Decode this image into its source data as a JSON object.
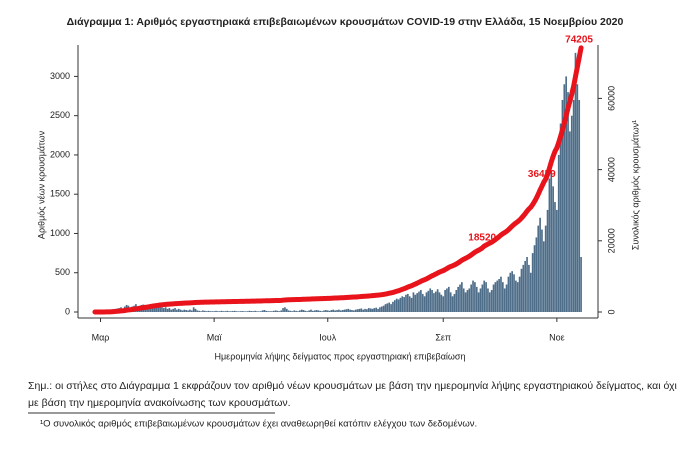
{
  "chart_data": {
    "type": "bar",
    "title": "Διάγραμμα 1: Αριθμός εργαστηριακά επιβεβαιωμένων κρουσμάτων COVID-19 στην Ελλάδα, 15 Νοεμβρίου 2020",
    "xlabel": "Ημερομηνία λήψης δείγματος προς εργαστηριακή επιβεβαίωση",
    "ylabel": "Αριθμός νέων κρουσμάτων",
    "y2label": "Συνολικός αριθμός κρουσμάτων¹",
    "ylim": [
      0,
      3400
    ],
    "yticks": [
      0,
      500,
      1000,
      1500,
      2000,
      2500,
      3000
    ],
    "y2lim": [
      0,
      75000
    ],
    "y2ticks": [
      0,
      20000,
      40000,
      60000
    ],
    "categories": [
      null,
      null,
      null,
      "Μαρ",
      null,
      null,
      null,
      null,
      null,
      null,
      null,
      null,
      null,
      null,
      null,
      null,
      null,
      null,
      null,
      null,
      null,
      null,
      null,
      null,
      null,
      null,
      null,
      null,
      null,
      null,
      null,
      null,
      null,
      null,
      null,
      null,
      null,
      null,
      null,
      null,
      null,
      null,
      null,
      null,
      null,
      null,
      null,
      null,
      null,
      null,
      null,
      null,
      null,
      null,
      null,
      null,
      null,
      null,
      null,
      null,
      null,
      null,
      null,
      null,
      "Μαϊ",
      null,
      null,
      null,
      null,
      null,
      null,
      null,
      null,
      null,
      null,
      null,
      null,
      null,
      null,
      null,
      null,
      null,
      null,
      null,
      null,
      null,
      null,
      null,
      null,
      null,
      null,
      null,
      null,
      null,
      null,
      null,
      null,
      null,
      null,
      null,
      null,
      null,
      null,
      null,
      null,
      null,
      null,
      null,
      null,
      null,
      null,
      null,
      null,
      null,
      null,
      null,
      null,
      null,
      null,
      null,
      null,
      null,
      null,
      null,
      null,
      "Ιουλ",
      null,
      null,
      null,
      null,
      null,
      null,
      null,
      null,
      null,
      null,
      null,
      null,
      null,
      null,
      null,
      null,
      null,
      null,
      null,
      null,
      null,
      null,
      null,
      null,
      null,
      null,
      null,
      null,
      null,
      null,
      null,
      null,
      null,
      null,
      null,
      null,
      null,
      null,
      null,
      null,
      null,
      null,
      null,
      null,
      null,
      null,
      null,
      null,
      null,
      null,
      null,
      null,
      null,
      null,
      null,
      null,
      null,
      null,
      null,
      null,
      null,
      "Σεπ",
      null,
      null,
      null,
      null,
      null,
      null,
      null,
      null,
      null,
      null,
      null,
      null,
      null,
      null,
      null,
      null,
      null,
      null,
      null,
      null,
      null,
      null,
      null,
      null,
      null,
      null,
      null,
      null,
      null,
      null,
      null,
      null,
      null,
      null,
      null,
      null,
      null,
      null,
      null,
      null,
      null,
      null,
      null,
      null,
      null,
      null,
      null,
      null,
      null,
      null,
      null,
      null,
      null,
      null,
      null,
      null,
      null,
      null,
      null,
      null,
      "Νοε",
      null,
      null,
      null,
      null,
      null,
      null,
      null,
      null,
      null,
      null,
      null,
      null,
      null
    ],
    "series": [
      {
        "type": "bar",
        "color": "#4e6d89",
        "values": [
          1,
          1,
          2,
          2,
          3,
          5,
          8,
          10,
          20,
          30,
          35,
          40,
          45,
          50,
          60,
          40,
          70,
          90,
          80,
          50,
          70,
          80,
          100,
          70,
          80,
          90,
          95,
          80,
          70,
          90,
          100,
          90,
          80,
          70,
          70,
          80,
          60,
          50,
          60,
          40,
          50,
          30,
          40,
          50,
          30,
          40,
          30,
          20,
          30,
          25,
          20,
          30,
          20,
          60,
          40,
          20,
          15,
          10,
          20,
          15,
          10,
          15,
          10,
          10,
          10,
          15,
          10,
          10,
          15,
          10,
          10,
          15,
          10,
          10,
          12,
          15,
          10,
          8,
          10,
          12,
          10,
          8,
          10,
          15,
          12,
          10,
          15,
          10,
          8,
          10,
          20,
          25,
          15,
          10,
          10,
          10,
          15,
          20,
          15,
          10,
          20,
          50,
          60,
          40,
          20,
          15,
          10,
          20,
          15,
          10,
          20,
          30,
          25,
          15,
          10,
          20,
          30,
          15,
          20,
          25,
          20,
          15,
          10,
          20,
          25,
          20,
          15,
          25,
          30,
          20,
          25,
          30,
          20,
          25,
          30,
          35,
          40,
          30,
          25,
          20,
          30,
          35,
          40,
          45,
          30,
          40,
          35,
          50,
          45,
          40,
          50,
          55,
          40,
          60,
          70,
          80,
          100,
          110,
          120,
          100,
          130,
          150,
          170,
          160,
          180,
          200,
          190,
          220,
          230,
          200,
          180,
          250,
          220,
          240,
          260,
          280,
          230,
          200,
          250,
          270,
          300,
          280,
          240,
          260,
          290,
          250,
          220,
          200,
          280,
          300,
          320,
          250,
          200,
          230,
          280,
          320,
          350,
          380,
          300,
          250,
          280,
          300,
          350,
          400,
          380,
          320,
          250,
          300,
          350,
          400,
          380,
          300,
          250,
          280,
          350,
          380,
          400,
          420,
          450,
          380,
          300,
          350,
          450,
          500,
          520,
          480,
          400,
          380,
          450,
          550,
          600,
          650,
          700,
          600,
          500,
          750,
          850,
          950,
          1100,
          1200,
          1050,
          900,
          1100,
          1300,
          1700,
          1800,
          1600,
          1400,
          1300,
          2000,
          2400,
          2700,
          2900,
          3000,
          2800,
          2300,
          2500,
          2700,
          3300,
          2900,
          2700,
          700
        ]
      },
      {
        "type": "line",
        "axis": "y2",
        "color": "#e8131b",
        "values": [
          1,
          2,
          4,
          6,
          9,
          14,
          22,
          32,
          52,
          82,
          117,
          157,
          202,
          252,
          312,
          352,
          422,
          512,
          592,
          642,
          712,
          792,
          892,
          962,
          1042,
          1132,
          1227,
          1307,
          1377,
          1467,
          1567,
          1657,
          1737,
          1807,
          1877,
          1957,
          2017,
          2067,
          2127,
          2167,
          2217,
          2247,
          2287,
          2337,
          2367,
          2407,
          2437,
          2457,
          2487,
          2512,
          2532,
          2562,
          2582,
          2642,
          2682,
          2702,
          2717,
          2727,
          2747,
          2762,
          2772,
          2787,
          2797,
          2807,
          2817,
          2832,
          2842,
          2852,
          2867,
          2877,
          2887,
          2902,
          2912,
          2922,
          2934,
          2949,
          2959,
          2967,
          2977,
          2989,
          2999,
          3007,
          3017,
          3032,
          3044,
          3054,
          3069,
          3079,
          3087,
          3097,
          3117,
          3142,
          3157,
          3167,
          3177,
          3187,
          3202,
          3222,
          3237,
          3247,
          3267,
          3317,
          3377,
          3417,
          3437,
          3452,
          3462,
          3482,
          3497,
          3507,
          3527,
          3557,
          3582,
          3597,
          3607,
          3627,
          3657,
          3672,
          3692,
          3717,
          3737,
          3752,
          3762,
          3782,
          3807,
          3827,
          3842,
          3867,
          3897,
          3917,
          3942,
          3972,
          3992,
          4017,
          4047,
          4082,
          4122,
          4152,
          4177,
          4197,
          4227,
          4262,
          4302,
          4347,
          4377,
          4417,
          4452,
          4502,
          4547,
          4587,
          4637,
          4692,
          4732,
          4792,
          4862,
          4942,
          5042,
          5152,
          5272,
          5372,
          5502,
          5652,
          5822,
          5982,
          6162,
          6362,
          6552,
          6772,
          7002,
          7202,
          7382,
          7632,
          7852,
          8092,
          8352,
          8632,
          8862,
          9062,
          9312,
          9582,
          9882,
          10162,
          10402,
          10662,
          10952,
          11202,
          11422,
          11622,
          11902,
          12202,
          12522,
          12772,
          12972,
          13202,
          13482,
          13802,
          14152,
          14532,
          14832,
          15082,
          15362,
          15662,
          16012,
          16412,
          16792,
          17112,
          17362,
          17662,
          18012,
          18520,
          18792,
          19092,
          19342,
          19622,
          19972,
          20352,
          20752,
          21172,
          21622,
          22002,
          22302,
          22652,
          23102,
          23602,
          24122,
          24602,
          25002,
          25382,
          25832,
          26382,
          26982,
          27632,
          28332,
          28932,
          29432,
          30182,
          31032,
          31982,
          33082,
          34282,
          35332,
          36459,
          37332,
          38632,
          40332,
          42132,
          43732,
          45132,
          46100,
          47600,
          49300,
          51200,
          53100,
          55200,
          57300,
          59200,
          61200,
          63400,
          66100,
          68800,
          71500,
          74205
        ],
        "value_labels": [
          null,
          null,
          null,
          null,
          null,
          null,
          null,
          null,
          null,
          null,
          null,
          null,
          null,
          null,
          null,
          null,
          null,
          null,
          null,
          null,
          null,
          null,
          null,
          null,
          null,
          null,
          null,
          null,
          null,
          null,
          null,
          null,
          null,
          null,
          null,
          null,
          null,
          null,
          null,
          null,
          null,
          null,
          null,
          null,
          null,
          null,
          null,
          null,
          null,
          null,
          null,
          null,
          null,
          null,
          null,
          null,
          null,
          null,
          null,
          null,
          null,
          null,
          null,
          null,
          null,
          null,
          null,
          null,
          null,
          null,
          null,
          null,
          null,
          null,
          null,
          null,
          null,
          null,
          null,
          null,
          null,
          null,
          null,
          null,
          null,
          null,
          null,
          null,
          null,
          null,
          null,
          null,
          null,
          null,
          null,
          null,
          null,
          null,
          null,
          null,
          null,
          null,
          null,
          null,
          null,
          null,
          null,
          null,
          null,
          null,
          null,
          null,
          null,
          null,
          null,
          null,
          null,
          null,
          null,
          null,
          null,
          null,
          null,
          null,
          null,
          null,
          null,
          null,
          null,
          null,
          null,
          null,
          null,
          null,
          null,
          null,
          null,
          null,
          null,
          null,
          null,
          null,
          null,
          null,
          null,
          null,
          null,
          null,
          null,
          null,
          null,
          null,
          null,
          null,
          null,
          null,
          null,
          null,
          null,
          null,
          null,
          null,
          null,
          null,
          null,
          null,
          null,
          null,
          null,
          null,
          null,
          null,
          null,
          null,
          null,
          null,
          null,
          null,
          null,
          null,
          null,
          null,
          null,
          null,
          null,
          null,
          null,
          null,
          null,
          null,
          null,
          null,
          null,
          null,
          null,
          null,
          null,
          null,
          null,
          null,
          null,
          null,
          null,
          null,
          null,
          null,
          null,
          null,
          null,
          "18520",
          null,
          null,
          null,
          null,
          null,
          null,
          null,
          null,
          null,
          null,
          null,
          null,
          null,
          null,
          null,
          null,
          null,
          null,
          null,
          null,
          null,
          null,
          null,
          null,
          null,
          null,
          null,
          null,
          null,
          null,
          null,
          "36459",
          null,
          null,
          null,
          null,
          null,
          null,
          null,
          null,
          null,
          null,
          null,
          null,
          null,
          null,
          null,
          null,
          null,
          null,
          null,
          "74205"
        ]
      }
    ]
  },
  "note": [
    "Σημ.: οι στήλες στο Διάγραμμα 1 εκφράζουν τον αριθμό νέων κρουσμάτων με βάση την ημερομηνία λήψης εργαστηριακού δείγματος, και όχι",
    "με βάση την ημερομηνία ανακοίνωσης των κρουσμάτων."
  ],
  "footnote": "¹O συνολικός αριθμός επιβεβαιωμένων κρουσμάτων έχει αναθεωρηθεί κατόπιν ελέγχου των δεδομένων."
}
